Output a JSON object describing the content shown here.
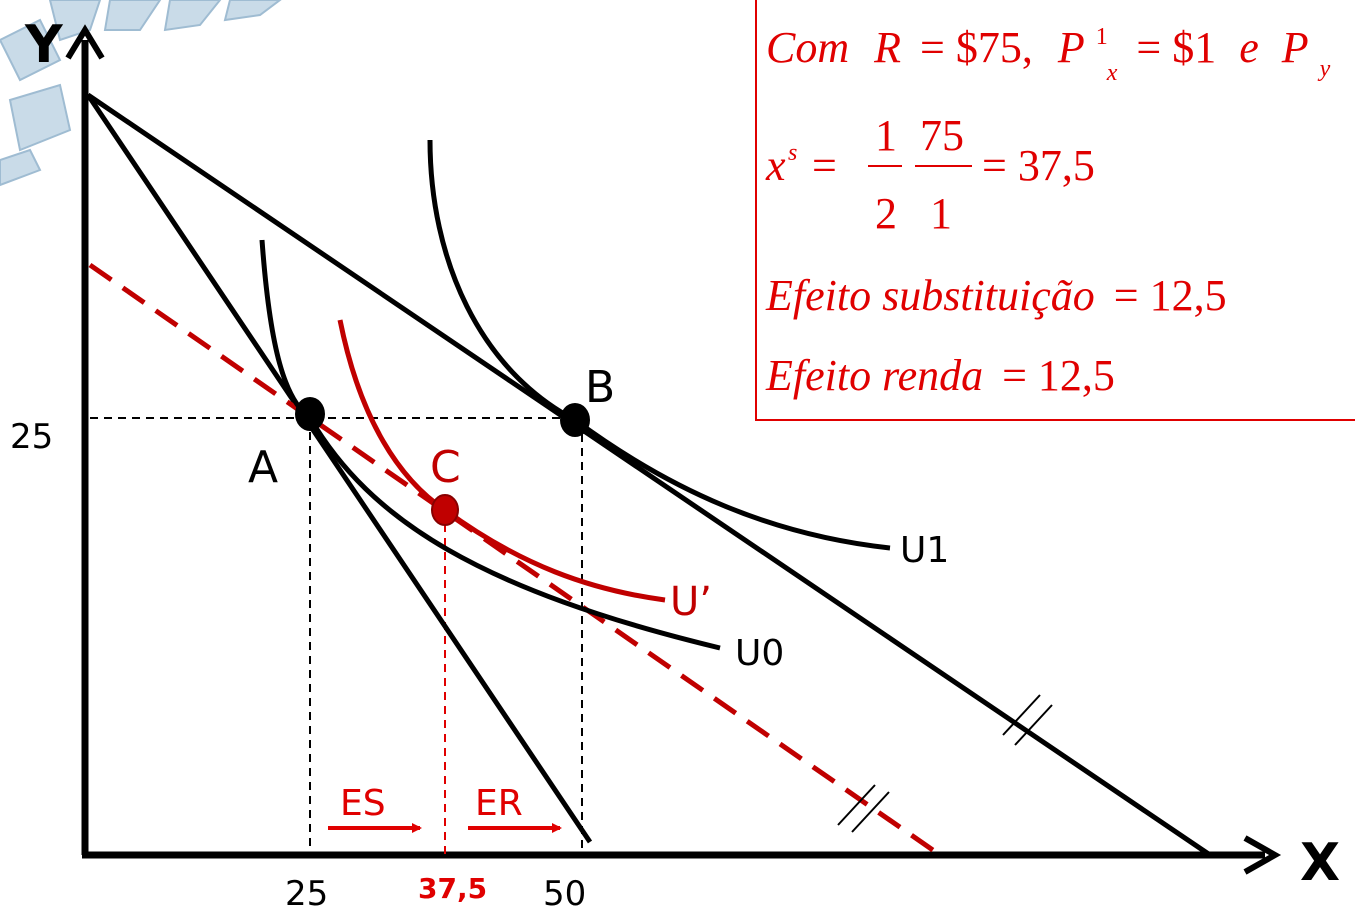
{
  "axes": {
    "y_label": "Y",
    "x_label": "X",
    "y_tick": "25",
    "x_ticks": [
      "25",
      "37,5",
      "50"
    ]
  },
  "points": {
    "a": "A",
    "b": "B",
    "c": "C"
  },
  "curves": {
    "u1": "U1",
    "u_prime": "U’",
    "u0": "U0"
  },
  "arrows": {
    "es": "ES",
    "er": "ER"
  },
  "box": {
    "line1": {
      "start": "Com",
      "r": "R",
      "eq1": "= $75,",
      "p": "P",
      "sup": "1",
      "sub": "x",
      "eq2": "= $1",
      "e": "e",
      "p2": "P",
      "sub2": "y"
    },
    "line2": {
      "x": "x",
      "sup": "s",
      "eq": "=",
      "num1": "1",
      "den1": "2",
      "num2": "75",
      "den2": "1",
      "result": "= 37,5"
    },
    "line3": {
      "label": "Efeito substituição",
      "value": "= 12,5"
    },
    "line4": {
      "label": "Efeito renda",
      "value": "= 12,5"
    }
  }
}
